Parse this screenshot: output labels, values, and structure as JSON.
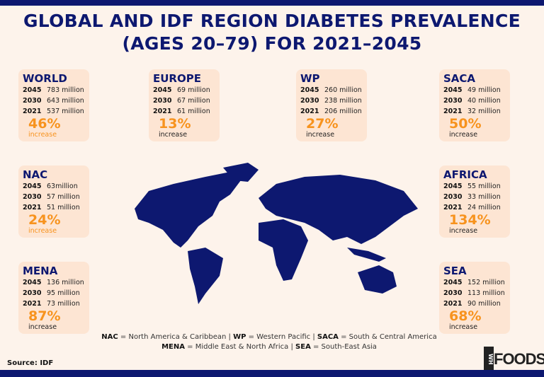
{
  "title": "GLOBAL AND IDF REGION DIABETES PREVALENCE (AGES 20–79) FOR 2021–2045",
  "colors": {
    "navy": "#0d1870",
    "orange": "#f7931e",
    "card": "#fde5d3",
    "background": "#fdf3eb"
  },
  "regions": [
    {
      "name": "WORLD",
      "rows": [
        [
          "2045",
          "783 million"
        ],
        [
          "2030",
          "643 million"
        ],
        [
          "2021",
          "537 million"
        ]
      ],
      "pct": "46%",
      "inc": "increase"
    },
    {
      "name": "EUROPE",
      "rows": [
        [
          "2045",
          "69 million"
        ],
        [
          "2030",
          "67 million"
        ],
        [
          "2021",
          "61 million"
        ]
      ],
      "pct": "13%",
      "inc": "increase"
    },
    {
      "name": "WP",
      "rows": [
        [
          "2045",
          "260 million"
        ],
        [
          "2030",
          "238 million"
        ],
        [
          "2021",
          "206 million"
        ]
      ],
      "pct": "27%",
      "inc": "increase"
    },
    {
      "name": "SACA",
      "rows": [
        [
          "2045",
          "49 million"
        ],
        [
          "2030",
          "40 million"
        ],
        [
          "2021",
          "32 million"
        ]
      ],
      "pct": "50%",
      "inc": "increase"
    },
    {
      "name": "NAC",
      "rows": [
        [
          "2045",
          "63million"
        ],
        [
          "2030",
          "57 million"
        ],
        [
          "2021",
          "51 million"
        ]
      ],
      "pct": "24%",
      "inc": "increase"
    },
    {
      "name": "AFRICA",
      "rows": [
        [
          "2045",
          "55 million"
        ],
        [
          "2030",
          "33 million"
        ],
        [
          "2021",
          "24 million"
        ]
      ],
      "pct": "134%",
      "inc": "increase"
    },
    {
      "name": "MENA",
      "rows": [
        [
          "2045",
          "136 million"
        ],
        [
          "2030",
          "95 million"
        ],
        [
          "2021",
          "73 million"
        ]
      ],
      "pct": "87%",
      "inc": "increase"
    },
    {
      "name": "SEA",
      "rows": [
        [
          "2045",
          "152 million"
        ],
        [
          "2030",
          "113 million"
        ],
        [
          "2021",
          "90 million"
        ]
      ],
      "pct": "68%",
      "inc": "increase"
    }
  ],
  "legend": {
    "l1": [
      [
        "NAC",
        " = North America & Caribbean | "
      ],
      [
        "WP",
        " = Western Pacific | "
      ],
      [
        "SACA",
        " = South & Central America"
      ]
    ],
    "l2": [
      [
        "MENA",
        " = Middle East & North Africa | "
      ],
      [
        "SEA",
        " = South-East Asia"
      ]
    ]
  },
  "source": "Source: IDF",
  "logo": {
    "mark": "WH",
    "text": "FOODS"
  }
}
